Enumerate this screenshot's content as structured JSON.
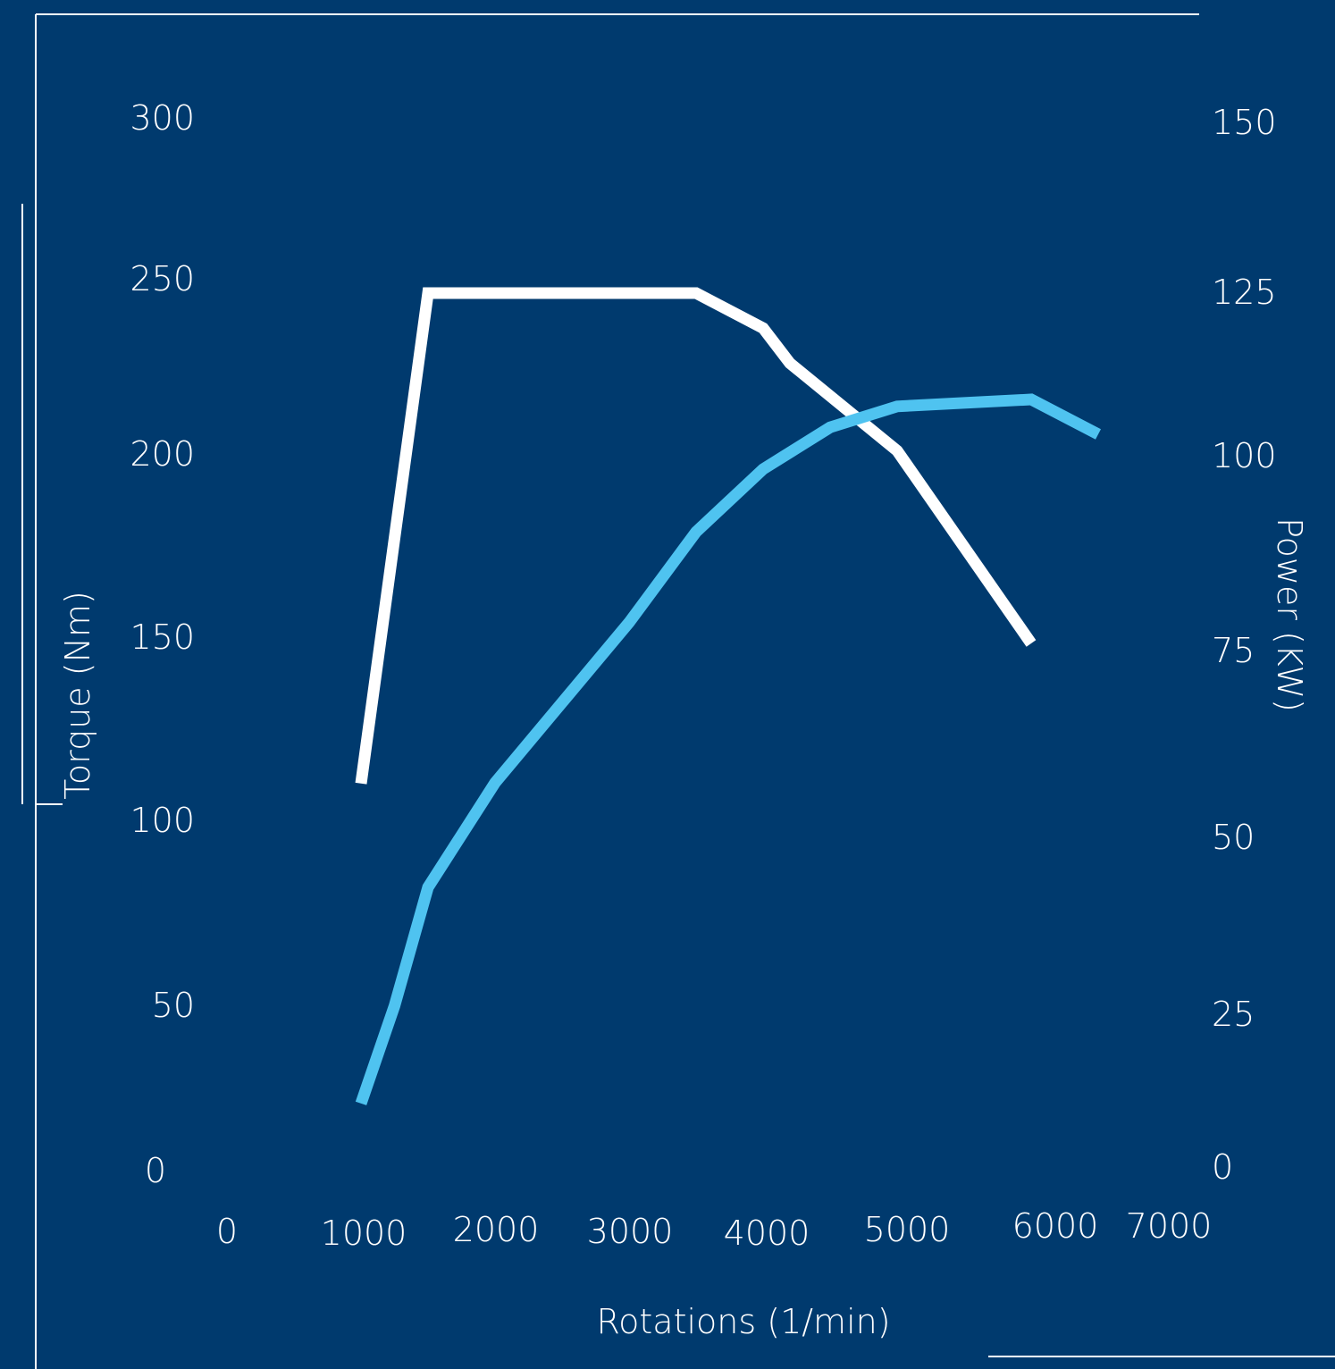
{
  "colors": {
    "background": "#003a6e",
    "torque": "#ffffff",
    "power": "#4fc3f0",
    "text": "#ffffff"
  },
  "chart_data": {
    "type": "line",
    "title": "",
    "xlabel": "Rotations (1/min)",
    "ylabel_left": "Torque (Nm)",
    "ylabel_right": "Power (KW)",
    "xlim": [
      0,
      7000
    ],
    "ylim_left": [
      0,
      300
    ],
    "ylim_right": [
      0,
      150
    ],
    "x_ticks": [
      "0",
      "1000",
      "2000",
      "3000",
      "4000",
      "5000",
      "6000",
      "7000"
    ],
    "y_ticks_left": [
      "0",
      "50",
      "100",
      "150",
      "200",
      "250",
      "300"
    ],
    "y_ticks_right": [
      "0",
      "25",
      "50",
      "75",
      "100",
      "125",
      "150"
    ],
    "grid": false,
    "series": [
      {
        "axis": "left",
        "color": "#ffffff",
        "x": [
          1000,
          1500,
          3500,
          4000,
          4200,
          5000,
          6000
        ],
        "values": [
          110,
          250,
          250,
          240,
          230,
          205,
          150
        ]
      },
      {
        "axis": "right",
        "color": "#4fc3f0",
        "x": [
          1000,
          1250,
          1500,
          2000,
          3000,
          3500,
          4000,
          4500,
          5000,
          6000,
          6500
        ],
        "values": [
          9,
          23,
          40,
          55,
          78,
          91,
          100,
          106,
          109,
          110,
          105
        ]
      }
    ]
  }
}
